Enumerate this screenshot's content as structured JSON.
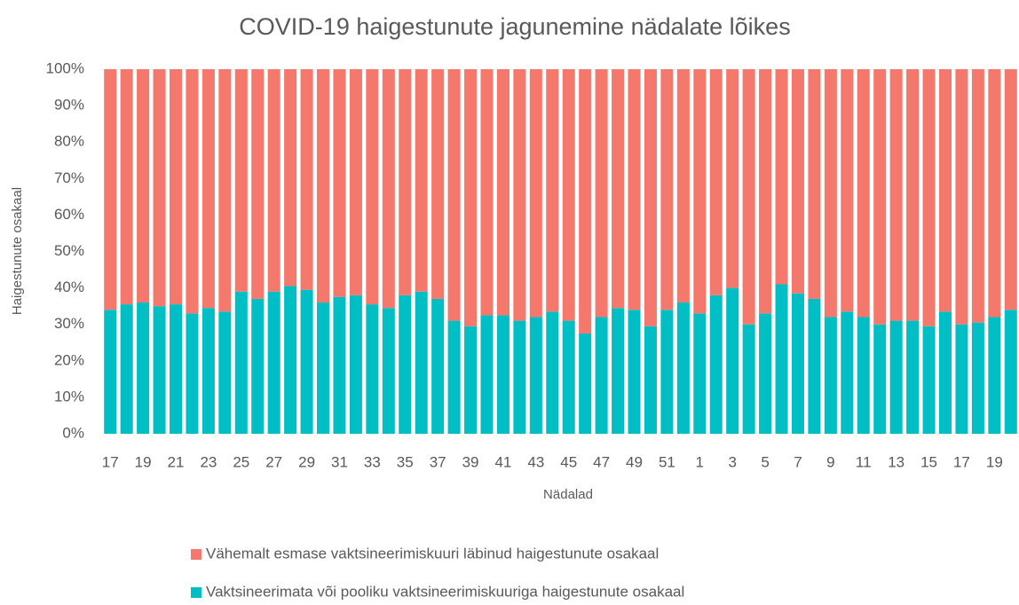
{
  "chart_data": {
    "type": "stacked_bar",
    "title": "COVID-19 haigestunute jagunemine nädalate lõikes",
    "x_label": "Nädalad",
    "y_label": "Haigestunute osakaal",
    "categories": [
      "17",
      null,
      "19",
      null,
      "21",
      null,
      "23",
      null,
      "25",
      null,
      "27",
      null,
      "29",
      null,
      "31",
      null,
      "33",
      null,
      "35",
      null,
      "37",
      null,
      "39",
      null,
      "41",
      null,
      "43",
      null,
      "45",
      null,
      "47",
      null,
      "49",
      null,
      "51",
      null,
      "1",
      null,
      "3",
      null,
      "5",
      null,
      "7",
      null,
      "9",
      null,
      "11",
      null,
      "13",
      null,
      "15",
      null,
      "17",
      null,
      "19",
      null
    ],
    "series": [
      {
        "name": "Vähemalt esmase vaktsineerimiskuuri läbinud haigestunute osakaal",
        "color": "#f4786c",
        "values": [
          66,
          64.5,
          64,
          65,
          64.5,
          67,
          65.5,
          66.5,
          61,
          63,
          61,
          59.5,
          60.5,
          64,
          62.5,
          62,
          64.5,
          65.5,
          62,
          61,
          63,
          69,
          70.5,
          67.5,
          67.5,
          69,
          68,
          66.5,
          69,
          72.5,
          68,
          65.5,
          66,
          70.5,
          66,
          64,
          67,
          62,
          60,
          70,
          67,
          59,
          61.5,
          63,
          68,
          66.5,
          68,
          70,
          69,
          69,
          70.5,
          66.5,
          70,
          69.5,
          68,
          66
        ]
      },
      {
        "name": "Vaktsineerimata või pooliku vaktsineerimiskuuriga haigestunute osakaal",
        "color": "#00bfc4",
        "values": [
          34,
          35.5,
          36,
          35,
          35.5,
          33,
          34.5,
          33.5,
          39,
          37,
          39,
          40.5,
          39.5,
          36,
          37.5,
          38,
          35.5,
          34.5,
          38,
          39,
          37,
          31,
          29.5,
          32.5,
          32.5,
          31,
          32,
          33.5,
          31,
          27.5,
          32,
          34.5,
          34,
          29.5,
          34,
          36,
          33,
          38,
          40,
          30,
          33,
          41,
          38.5,
          37,
          32,
          33.5,
          32,
          30,
          31,
          31,
          29.5,
          33.5,
          30,
          30.5,
          32,
          34
        ]
      }
    ],
    "ylim": [
      0,
      100
    ],
    "yticks": [
      {
        "value": 0,
        "label": "0%"
      },
      {
        "value": 10,
        "label": "10%"
      },
      {
        "value": 20,
        "label": "20%"
      },
      {
        "value": 30,
        "label": "30%"
      },
      {
        "value": 40,
        "label": "40%"
      },
      {
        "value": 50,
        "label": "50%"
      },
      {
        "value": 60,
        "label": "60%"
      },
      {
        "value": 70,
        "label": "70%"
      },
      {
        "value": 80,
        "label": "80%"
      },
      {
        "value": 90,
        "label": "90%"
      },
      {
        "value": 100,
        "label": "100%"
      }
    ],
    "grid": false
  }
}
